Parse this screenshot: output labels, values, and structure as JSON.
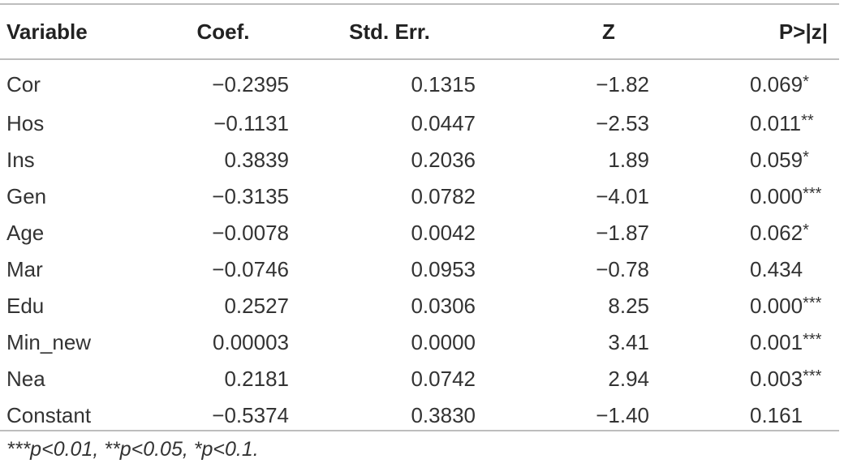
{
  "table": {
    "headers": {
      "variable": "Variable",
      "coef": "Coef.",
      "std_err": "Std. Err.",
      "z": "Z",
      "p": "P>|z|"
    },
    "rows": [
      {
        "variable": "Cor",
        "coef": "−0.2395",
        "std_err": "0.1315",
        "z": "−1.82",
        "p": "0.069",
        "sig": "*"
      },
      {
        "variable": "Hos",
        "coef": "−0.1131",
        "std_err": "0.0447",
        "z": "−2.53",
        "p": "0.011",
        "sig": "**"
      },
      {
        "variable": "Ins",
        "coef": "0.3839",
        "std_err": "0.2036",
        "z": "1.89",
        "p": "0.059",
        "sig": "*"
      },
      {
        "variable": "Gen",
        "coef": "−0.3135",
        "std_err": "0.0782",
        "z": "−4.01",
        "p": "0.000",
        "sig": "***"
      },
      {
        "variable": "Age",
        "coef": "−0.0078",
        "std_err": "0.0042",
        "z": "−1.87",
        "p": "0.062",
        "sig": "*"
      },
      {
        "variable": "Mar",
        "coef": "−0.0746",
        "std_err": "0.0953",
        "z": "−0.78",
        "p": "0.434",
        "sig": ""
      },
      {
        "variable": "Edu",
        "coef": "0.2527",
        "std_err": "0.0306",
        "z": "8.25",
        "p": "0.000",
        "sig": "***"
      },
      {
        "variable": "Min_new",
        "coef": "0.00003",
        "std_err": "0.0000",
        "z": "3.41",
        "p": "0.001",
        "sig": "***"
      },
      {
        "variable": "Nea",
        "coef": "0.2181",
        "std_err": "0.0742",
        "z": "2.94",
        "p": "0.003",
        "sig": "***"
      },
      {
        "variable": "Constant",
        "coef": "−0.5374",
        "std_err": "0.3830",
        "z": "−1.40",
        "p": "0.161",
        "sig": ""
      }
    ]
  },
  "footnote": "***p<0.01, **p<0.05, *p<0.1."
}
